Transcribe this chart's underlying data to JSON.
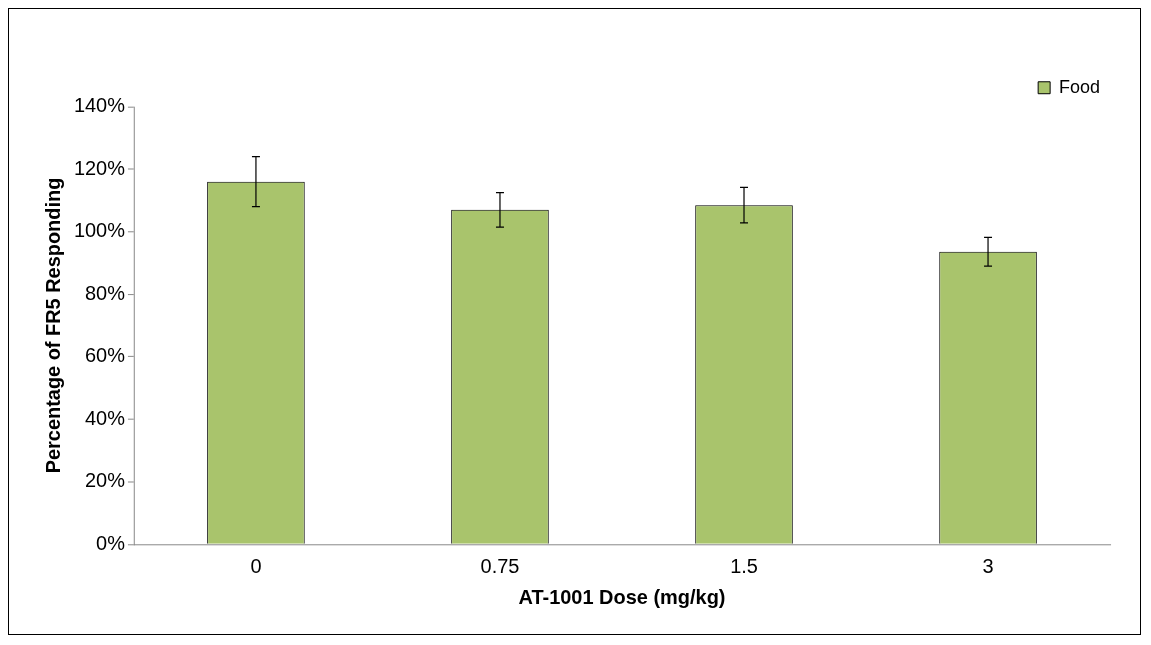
{
  "chart_data": {
    "type": "bar",
    "xlabel": "AT-1001 Dose (mg/kg)",
    "ylabel": "Percentage of FR5 Responding",
    "categories": [
      "0",
      "0.75",
      "1.5",
      "3"
    ],
    "series": [
      {
        "name": "Food",
        "color": "#a9c46c",
        "values": [
          116,
          107,
          108.5,
          93.6
        ],
        "errors": [
          8,
          5.5,
          5.7,
          4.6
        ]
      }
    ],
    "ylim": [
      0,
      140
    ],
    "yticks": [
      {
        "value": 0,
        "label": "0%"
      },
      {
        "value": 20,
        "label": "20%"
      },
      {
        "value": 40,
        "label": "40%"
      },
      {
        "value": 60,
        "label": "60%"
      },
      {
        "value": 80,
        "label": "80%"
      },
      {
        "value": 100,
        "label": "100%"
      },
      {
        "value": 120,
        "label": "120%"
      },
      {
        "value": 140,
        "label": "140%"
      }
    ],
    "grid": false,
    "legend": "top right"
  }
}
